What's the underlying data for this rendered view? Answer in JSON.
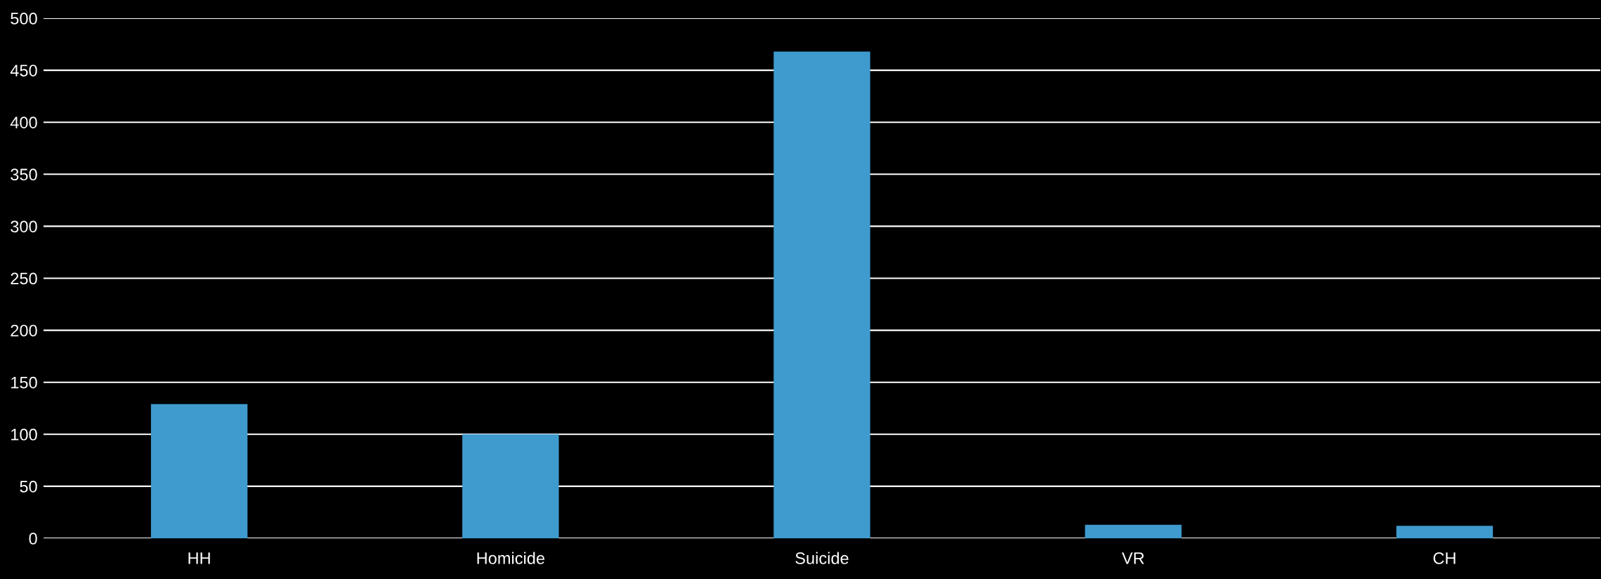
{
  "chart_data": {
    "type": "bar",
    "categories": [
      "HH",
      "Homicide",
      "Suicide",
      "VR",
      "CH"
    ],
    "values": [
      129,
      100,
      468,
      13,
      12
    ],
    "color": "#3f9bce",
    "ylim": [
      0,
      500
    ],
    "yticks": [
      0,
      50,
      100,
      150,
      200,
      250,
      300,
      350,
      400,
      450,
      500
    ],
    "grid": "y"
  }
}
